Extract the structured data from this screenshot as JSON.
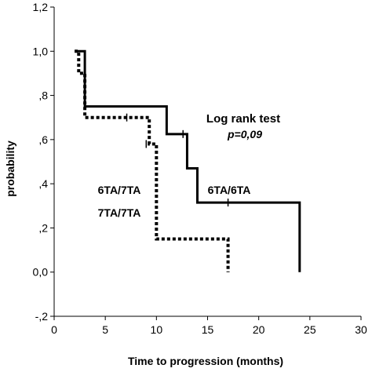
{
  "chart_data": {
    "type": "line",
    "subtype": "kaplan-meier",
    "title": "",
    "xlabel": "Time to progression (months)",
    "ylabel": "probability",
    "xlim": [
      0,
      30
    ],
    "ylim": [
      -0.2,
      1.2
    ],
    "x_ticks": [
      0,
      5,
      10,
      15,
      20,
      25,
      30
    ],
    "x_tick_labels": [
      "0",
      "5",
      "10",
      "15",
      "20",
      "25",
      "30"
    ],
    "y_ticks": [
      -0.2,
      0.0,
      0.2,
      0.4,
      0.6,
      0.8,
      1.0,
      1.2
    ],
    "y_tick_labels": [
      "-,2",
      "0,0",
      ",2",
      ",4",
      ",6",
      ",8",
      "1,0",
      "1,2"
    ],
    "grid": false,
    "series": [
      {
        "name": "6TA/6TA",
        "style": "solid",
        "color": "#000000",
        "steps": [
          [
            2.0,
            1.0
          ],
          [
            3.0,
            0.75
          ],
          [
            11.0,
            0.625
          ],
          [
            13.0,
            0.47
          ],
          [
            14.0,
            0.315
          ],
          [
            24.0,
            0.0
          ]
        ],
        "end_x": 24.0,
        "censor_marks": [
          [
            12.6,
            0.625
          ],
          [
            17.0,
            0.315
          ]
        ]
      },
      {
        "name": "6TA/7TA 7TA/7TA",
        "style": "dotted",
        "color": "#000000",
        "steps": [
          [
            2.0,
            1.0
          ],
          [
            2.4,
            0.9
          ],
          [
            3.0,
            0.7
          ],
          [
            9.3,
            0.58
          ],
          [
            10.0,
            0.15
          ],
          [
            17.0,
            0.0
          ]
        ],
        "end_x": 17.0,
        "censor_marks": [
          [
            7.1,
            0.7
          ],
          [
            9.0,
            0.58
          ]
        ]
      }
    ],
    "annotations": {
      "test_title": "Log rank test",
      "test_pvalue": "p=0,09",
      "label_group1": "6TA/6TA",
      "label_group2_line1": "6TA/7TA",
      "label_group2_line2": "7TA/7TA"
    }
  }
}
